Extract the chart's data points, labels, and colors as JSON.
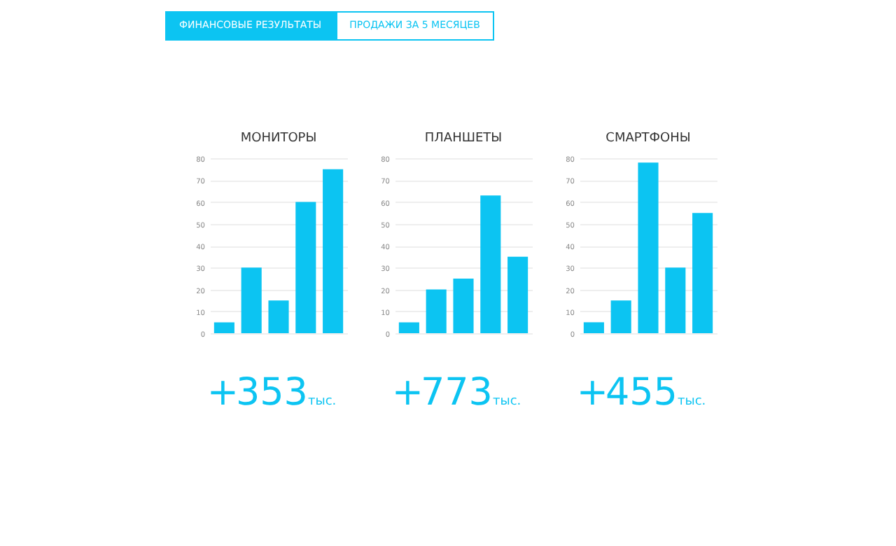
{
  "chart_data": [
    {
      "type": "other",
      "annotations": [
        "ФИНАНСОВЫЕ РЕЗУЛЬТАТЫ",
        "ПРОДАЖИ ЗА 5 МЕСЯЦЕВ"
      ]
    },
    {
      "type": "bar",
      "title": "МОНИТОРЫ",
      "categories": [
        null,
        null,
        null,
        null,
        null
      ],
      "values": [
        5,
        30,
        15,
        60,
        75
      ],
      "color": "#0cc4f2",
      "ylim": [
        0,
        80
      ],
      "yticks": [
        0,
        10,
        20,
        30,
        40,
        50,
        60,
        70,
        80
      ],
      "grid": "y",
      "tick_labels": "y",
      "annotations": [
        "+353тыс."
      ]
    },
    {
      "type": "bar",
      "title": "ПЛАНШЕТЫ",
      "categories": [
        null,
        null,
        null,
        null,
        null
      ],
      "values": [
        5,
        20,
        25,
        63,
        35
      ],
      "color": "#0cc4f2",
      "ylim": [
        0,
        80
      ],
      "yticks": [
        0,
        10,
        20,
        30,
        40,
        50,
        60,
        70,
        80
      ],
      "grid": "y",
      "tick_labels": "y",
      "annotations": [
        "+773тыс."
      ]
    },
    {
      "type": "bar",
      "title": "СМАРТФОНЫ",
      "categories": [
        null,
        null,
        null,
        null,
        null
      ],
      "values": [
        5,
        15,
        78,
        30,
        55
      ],
      "color": "#0cc4f2",
      "ylim": [
        0,
        80
      ],
      "yticks": [
        0,
        10,
        20,
        30,
        40,
        50,
        60,
        70,
        80
      ],
      "grid": "y",
      "tick_labels": "y",
      "annotations": [
        "+455тыс."
      ]
    }
  ]
}
